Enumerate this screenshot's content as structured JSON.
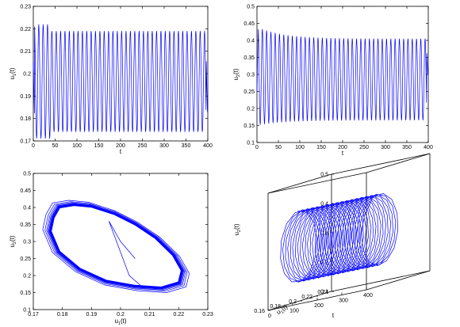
{
  "chart_data": [
    {
      "type": "line",
      "xlabel": "t",
      "ylabel": "u",
      "ylabel_sub": "1",
      "ylabel_tail": "(t)",
      "xlim": [
        0,
        400
      ],
      "ylim": [
        0.17,
        0.23
      ],
      "xticks": [
        "0",
        "50",
        "100",
        "150",
        "200",
        "250",
        "300",
        "350",
        "400"
      ],
      "yticks": [
        "0.17",
        "0.18",
        "0.19",
        "0.2",
        "0.21",
        "0.22",
        "0.23"
      ],
      "series": [
        {
          "color": "#0000ff",
          "x": [
            0,
            3,
            7,
            11,
            15,
            19,
            23,
            27,
            31,
            35,
            40,
            45,
            50,
            55,
            60,
            65,
            70,
            80,
            90,
            100,
            120,
            140,
            160,
            180,
            200,
            220,
            240,
            260,
            280,
            300,
            320,
            340,
            360,
            380,
            395,
            399
          ],
          "y": [
            0.205,
            0.17,
            0.222,
            0.175,
            0.221,
            0.173,
            0.222,
            0.172,
            0.221,
            0.173,
            0.221,
            0.173,
            0.22,
            0.173,
            0.22,
            0.173,
            0.22,
            0.174,
            0.219,
            0.174,
            0.219,
            0.174,
            0.219,
            0.174,
            0.219,
            0.174,
            0.219,
            0.174,
            0.219,
            0.174,
            0.219,
            0.174,
            0.219,
            0.174,
            0.219,
            0.183
          ]
        }
      ]
    },
    {
      "type": "line",
      "xlabel": "t",
      "ylabel": "u",
      "ylabel_sub": "2",
      "ylabel_tail": "(t)",
      "xlim": [
        0,
        400
      ],
      "ylim": [
        0.1,
        0.5
      ],
      "xticks": [
        "0",
        "50",
        "100",
        "150",
        "200",
        "250",
        "300",
        "350",
        "400"
      ],
      "yticks": [
        "0.1",
        "0.15",
        "0.2",
        "0.25",
        "0.3",
        "0.35",
        "0.4",
        "0.45",
        "0.5"
      ],
      "series": [
        {
          "color": "#0000ff",
          "x": [
            0,
            3,
            7,
            11,
            15,
            19,
            23,
            27,
            31,
            35,
            40,
            50,
            60,
            80,
            100,
            150,
            200,
            250,
            300,
            350,
            395,
            399
          ],
          "y": [
            0.25,
            0.44,
            0.15,
            0.43,
            0.16,
            0.42,
            0.16,
            0.415,
            0.165,
            0.41,
            0.165,
            0.41,
            0.165,
            0.41,
            0.165,
            0.405,
            0.165,
            0.405,
            0.165,
            0.405,
            0.4,
            0.3
          ],
          "osc_amp_start": [
            0.145,
            0.295
          ],
          "osc_amp_end": [
            0.165,
            0.405
          ]
        }
      ]
    },
    {
      "type": "line",
      "subtype": "phase-portrait",
      "xlabel": "u",
      "xlabel_sub": "1",
      "xlabel_tail": "(t)",
      "ylabel": "u",
      "ylabel_sub": "2",
      "ylabel_tail": "(t)",
      "xlim": [
        0.17,
        0.23
      ],
      "ylim": [
        0.1,
        0.5
      ],
      "xticks": [
        "0.17",
        "0.18",
        "0.19",
        "0.2",
        "0.21",
        "0.22",
        "0.23"
      ],
      "yticks": [
        "0.1",
        "0.15",
        "0.2",
        "0.25",
        "0.3",
        "0.35",
        "0.4",
        "0.45",
        "0.5"
      ],
      "series": [
        {
          "color": "#0000ff",
          "limit_cycle": {
            "u1": [
              0.177,
              0.179,
              0.184,
              0.19,
              0.198,
              0.205,
              0.212,
              0.218,
              0.221,
              0.22,
              0.214,
              0.205,
              0.195,
              0.186,
              0.179,
              0.176
            ],
            "u2": [
              0.37,
              0.4,
              0.407,
              0.402,
              0.38,
              0.35,
              0.31,
              0.26,
              0.215,
              0.18,
              0.165,
              0.17,
              0.185,
              0.22,
              0.27,
              0.33
            ]
          },
          "initial_point": [
            0.205,
            0.25
          ]
        }
      ]
    },
    {
      "type": "line",
      "subtype": "3d",
      "xlabel": "t",
      "ylabel": "u",
      "ylabel_sub": "1",
      "ylabel_tail": "(t)",
      "zlabel": "u",
      "zlabel_sub": "2",
      "zlabel_tail": "(t)",
      "xlim": [
        0,
        400
      ],
      "ylim": [
        0.16,
        0.24
      ],
      "zlim": [
        0.1,
        0.5
      ],
      "xticks": [
        "0",
        "100",
        "200",
        "300",
        "400"
      ],
      "yticks": [
        "0.16",
        "0.18",
        "0.2",
        "0.22",
        "0.24"
      ],
      "zticks": [
        "0.1",
        "0.2",
        "0.3",
        "0.4",
        "0.5"
      ],
      "series": [
        {
          "color": "#0000ff",
          "t_range": [
            0,
            400
          ],
          "u1_range": [
            0.173,
            0.221
          ],
          "u2_range": [
            0.165,
            0.41
          ]
        }
      ]
    }
  ]
}
